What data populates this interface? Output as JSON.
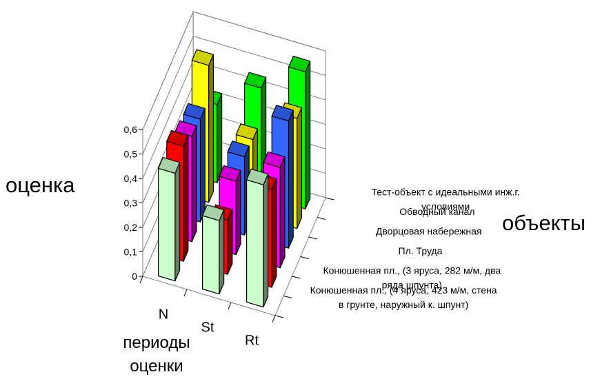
{
  "chart_data": {
    "type": "bar",
    "title": "",
    "ylabel": "оценка",
    "xlabel": "периоды оценки",
    "zlabel": "объекты",
    "ylim": [
      0,
      0.6
    ],
    "yticks": [
      "0",
      "0,1",
      "0,2",
      "0,3",
      "0,4",
      "0,5",
      "0,6"
    ],
    "categories": [
      "N",
      "St",
      "Rt"
    ],
    "grid": true,
    "series": [
      {
        "name": "Конюшенная пл., (4 яруса, 423 м/м, стена в грунте, наружный к. шпунт)",
        "lines": [
          "Конюшенная пл., (4 яруса, 423 м/м, стена",
          "в грунте, наружный к. шпунт)"
        ],
        "color": "#ccffcc",
        "values": [
          0.44,
          0.3,
          0.5
        ]
      },
      {
        "name": "Конюшенная пл., (3 яруса, 282 м/м, два ряда шпунта)",
        "lines": [
          "Конюшенная пл., (3 яруса, 282 м/м, два",
          "ряда шпунта)"
        ],
        "color": "#ff0000",
        "values": [
          0.47,
          0.22,
          0.4
        ]
      },
      {
        "name": "Пл. Труда",
        "lines": [
          "Пл. Труда"
        ],
        "color": "#ff00ff",
        "values": [
          0.43,
          0.3,
          0.41
        ]
      },
      {
        "name": "Дворцовая набережная",
        "lines": [
          "Дворцовая набережная"
        ],
        "color": "#3366ff",
        "values": [
          0.42,
          0.32,
          0.52
        ]
      },
      {
        "name": "Обводный канал",
        "lines": [
          "Обводный канал"
        ],
        "color": "#ffff00",
        "values": [
          0.56,
          0.31,
          0.45
        ]
      },
      {
        "name": "Тест-объект с идеальными инж.г. условиями",
        "lines": [
          "Тест-объект с идеальными инж.г.",
          "условиями"
        ],
        "color": "#00ff00",
        "values": [
          0.32,
          0.44,
          0.56
        ]
      }
    ]
  }
}
